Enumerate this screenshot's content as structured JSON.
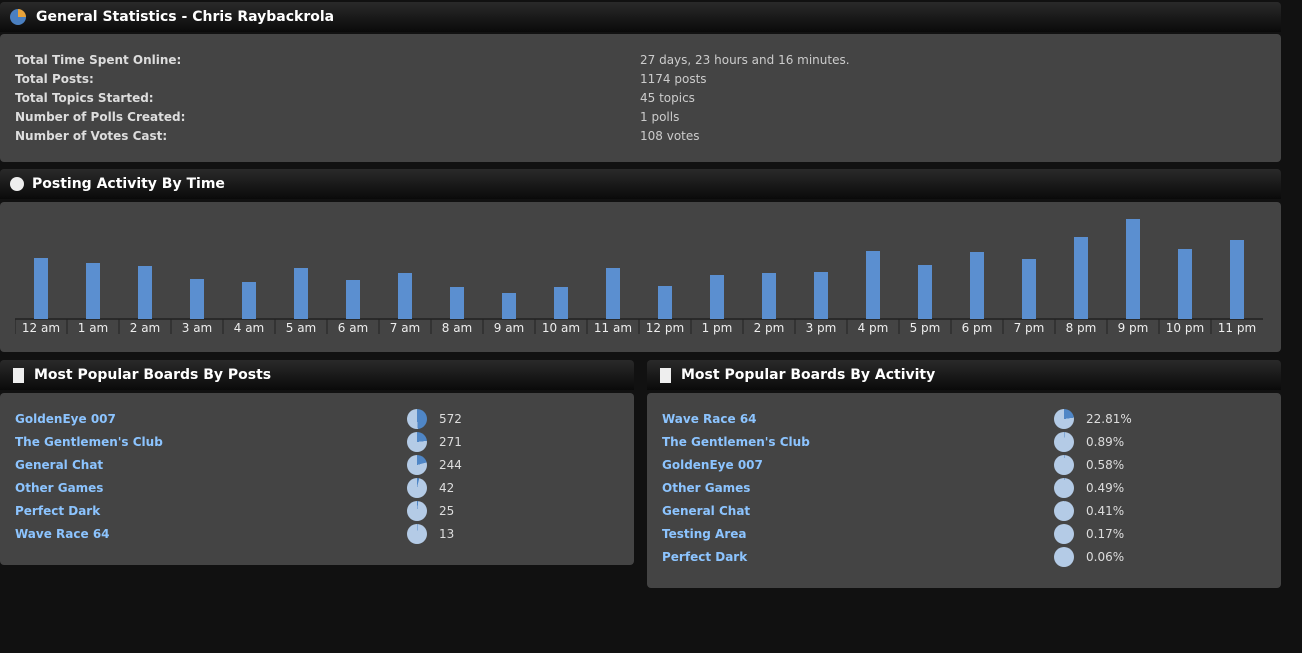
{
  "general": {
    "title": "General Statistics - Chris Raybackrola",
    "rows": [
      {
        "label": "Total Time Spent Online:",
        "value": "27 days, 23 hours and 16 minutes."
      },
      {
        "label": "Total Posts:",
        "value": "1174 posts"
      },
      {
        "label": "Total Topics Started:",
        "value": "45 topics"
      },
      {
        "label": "Number of Polls Created:",
        "value": "1 polls"
      },
      {
        "label": "Number of Votes Cast:",
        "value": "108 votes"
      }
    ]
  },
  "activity": {
    "title": "Posting Activity By Time"
  },
  "chart_data": {
    "type": "bar",
    "categories": [
      "12 am",
      "1 am",
      "2 am",
      "3 am",
      "4 am",
      "5 am",
      "6 am",
      "7 am",
      "8 am",
      "9 am",
      "10 am",
      "11 am",
      "12 pm",
      "1 pm",
      "2 pm",
      "3 pm",
      "4 pm",
      "5 pm",
      "6 pm",
      "7 pm",
      "8 pm",
      "9 pm",
      "10 pm",
      "11 pm"
    ],
    "values": [
      61,
      56,
      53,
      40,
      37,
      51,
      39,
      46,
      32,
      26,
      32,
      51,
      33,
      44,
      46,
      47,
      68,
      54,
      67,
      60,
      82,
      100,
      70,
      79
    ],
    "ylim": [
      0,
      100
    ],
    "color": "#5b8fd0",
    "grid": false
  },
  "byPosts": {
    "title": "Most Popular Boards By Posts",
    "items": [
      {
        "name": "GoldenEye 007",
        "value": "572",
        "fraction": 0.487
      },
      {
        "name": "The Gentlemen's Club",
        "value": "271",
        "fraction": 0.231
      },
      {
        "name": "General Chat",
        "value": "244",
        "fraction": 0.208
      },
      {
        "name": "Other Games",
        "value": "42",
        "fraction": 0.036
      },
      {
        "name": "Perfect Dark",
        "value": "25",
        "fraction": 0.021
      },
      {
        "name": "Wave Race 64",
        "value": "13",
        "fraction": 0.011
      }
    ]
  },
  "byActivity": {
    "title": "Most Popular Boards By Activity",
    "items": [
      {
        "name": "Wave Race 64",
        "value": "22.81%",
        "fraction": 0.2281
      },
      {
        "name": "The Gentlemen's Club",
        "value": "0.89%",
        "fraction": 0.0089
      },
      {
        "name": "GoldenEye 007",
        "value": "0.58%",
        "fraction": 0.0058
      },
      {
        "name": "Other Games",
        "value": "0.49%",
        "fraction": 0.0049
      },
      {
        "name": "General Chat",
        "value": "0.41%",
        "fraction": 0.0041
      },
      {
        "name": "Testing Area",
        "value": "0.17%",
        "fraction": 0.0017
      },
      {
        "name": "Perfect Dark",
        "value": "0.06%",
        "fraction": 0.0006
      }
    ]
  }
}
